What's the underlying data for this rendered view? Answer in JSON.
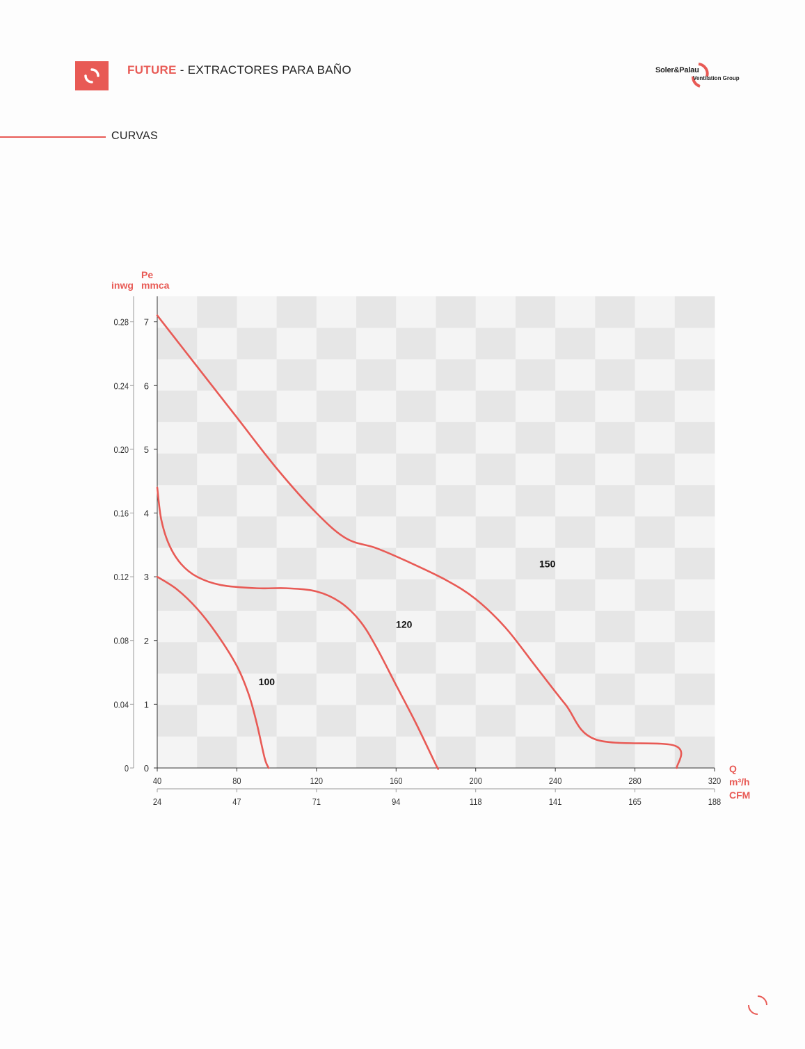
{
  "header": {
    "brand": "FUTURE",
    "subtitle": " - EXTRACTORES PARA BAÑO",
    "company": "Soler&Palau",
    "company_sub": "Ventilation Group"
  },
  "section": {
    "title": "CURVAS"
  },
  "colors": {
    "accent": "#e85a55",
    "grid_light": "#f4f4f4",
    "grid_dark": "#e6e6e6"
  },
  "chart_data": {
    "type": "line",
    "axis_labels": {
      "y_left_unit": "inwg",
      "y_pe": "Pe",
      "y_mmca": "mmca",
      "x_q": "Q",
      "x_m3h": "m³/h",
      "x_cfm": "CFM"
    },
    "xlim": [
      40,
      320
    ],
    "ylim": [
      0,
      7.4
    ],
    "x_ticks_m3h": [
      "40",
      "80",
      "120",
      "160",
      "200",
      "240",
      "280",
      "320"
    ],
    "x_ticks_cfm": [
      "24",
      "47",
      "71",
      "94",
      "118",
      "141",
      "165",
      "188"
    ],
    "y_ticks_mmca": [
      "0",
      "1",
      "2",
      "3",
      "4",
      "5",
      "6",
      "7"
    ],
    "y_ticks_inwg": [
      "0",
      "0.04",
      "0.08",
      "0.12",
      "0.16",
      "0.20",
      "0.24",
      "0.28"
    ],
    "series": [
      {
        "name": "100",
        "points": [
          [
            40,
            3.0
          ],
          [
            50,
            2.8
          ],
          [
            60,
            2.5
          ],
          [
            70,
            2.1
          ],
          [
            80,
            1.6
          ],
          [
            86,
            1.15
          ],
          [
            90,
            0.7
          ],
          [
            94,
            0.15
          ],
          [
            96,
            0
          ]
        ]
      },
      {
        "name": "120",
        "points": [
          [
            40,
            4.4
          ],
          [
            42,
            3.9
          ],
          [
            46,
            3.5
          ],
          [
            52,
            3.2
          ],
          [
            60,
            3.0
          ],
          [
            72,
            2.87
          ],
          [
            90,
            2.82
          ],
          [
            105,
            2.82
          ],
          [
            120,
            2.77
          ],
          [
            132,
            2.6
          ],
          [
            142,
            2.3
          ],
          [
            150,
            1.9
          ],
          [
            160,
            1.3
          ],
          [
            170,
            0.7
          ],
          [
            180,
            0.05
          ],
          [
            181,
            0
          ]
        ]
      },
      {
        "name": "150",
        "points": [
          [
            40,
            7.1
          ],
          [
            60,
            6.3
          ],
          [
            80,
            5.5
          ],
          [
            100,
            4.7
          ],
          [
            120,
            4.0
          ],
          [
            135,
            3.6
          ],
          [
            150,
            3.45
          ],
          [
            165,
            3.25
          ],
          [
            185,
            2.95
          ],
          [
            200,
            2.65
          ],
          [
            215,
            2.2
          ],
          [
            230,
            1.6
          ],
          [
            245,
            1.0
          ],
          [
            260,
            0.45
          ],
          [
            300,
            0.35
          ],
          [
            301,
            0
          ]
        ]
      }
    ],
    "series_labels": [
      {
        "name": "100",
        "at": [
          95,
          1.3
        ]
      },
      {
        "name": "120",
        "at": [
          164,
          2.2
        ]
      },
      {
        "name": "150",
        "at": [
          236,
          3.15
        ]
      }
    ]
  }
}
